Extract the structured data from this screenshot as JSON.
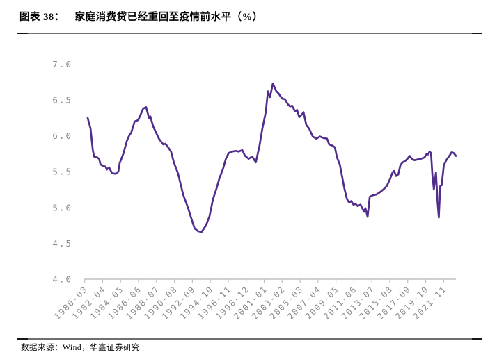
{
  "header": {
    "figure_label": "图表 38：",
    "figure_title": "家庭消费贷已经重回至疫情前水平（%）"
  },
  "footer": {
    "source_text": "数据来源：Wind，华鑫证券研究"
  },
  "colors": {
    "line": "#512E8C",
    "axis": "#C2C2C2",
    "tick_label": "#8A8A8A",
    "title_text": "#000000",
    "divider": "#6F6F6F"
  },
  "chart_data": {
    "type": "line",
    "title": "家庭消费贷已经重回至疫情前水平（%）",
    "unit": "%",
    "grid": false,
    "legend": "none",
    "ylim": [
      4.0,
      7.0
    ],
    "yticks": [
      7.0,
      6.5,
      6.0,
      5.5,
      5.0,
      4.5,
      4.0
    ],
    "xtick_labels": [
      "1980-03",
      "1982-04",
      "1984-05",
      "1986-06",
      "1988-07",
      "1990-08",
      "1992-09",
      "1994-10",
      "1996-11",
      "1998-12",
      "2001-01",
      "2003-02",
      "2005-03",
      "2007-04",
      "2009-05",
      "2011-06",
      "2013-07",
      "2015-08",
      "2017-09",
      "2019-10",
      "2021-11"
    ],
    "series": [
      {
        "points": [
          [
            "1980-03",
            6.25
          ],
          [
            "1980-07",
            6.1
          ],
          [
            "1980-10",
            5.81
          ],
          [
            "1980-12",
            5.71
          ],
          [
            "1981-04",
            5.7
          ],
          [
            "1981-07",
            5.68
          ],
          [
            "1981-09",
            5.6
          ],
          [
            "1982-01",
            5.58
          ],
          [
            "1982-04",
            5.57
          ],
          [
            "1982-06",
            5.53
          ],
          [
            "1982-09",
            5.56
          ],
          [
            "1983-01",
            5.48
          ],
          [
            "1983-06",
            5.47
          ],
          [
            "1983-10",
            5.5
          ],
          [
            "1983-12",
            5.62
          ],
          [
            "1984-05",
            5.75
          ],
          [
            "1984-10",
            5.93
          ],
          [
            "1985-02",
            6.02
          ],
          [
            "1985-04",
            6.04
          ],
          [
            "1985-09",
            6.2
          ],
          [
            "1986-02",
            6.22
          ],
          [
            "1986-09",
            6.38
          ],
          [
            "1987-01",
            6.4
          ],
          [
            "1987-05",
            6.25
          ],
          [
            "1987-07",
            6.27
          ],
          [
            "1987-11",
            6.13
          ],
          [
            "1988-07",
            5.96
          ],
          [
            "1989-01",
            5.88
          ],
          [
            "1989-04",
            5.89
          ],
          [
            "1989-08",
            5.84
          ],
          [
            "1989-12",
            5.78
          ],
          [
            "1990-04",
            5.63
          ],
          [
            "1990-10",
            5.47
          ],
          [
            "1991-05",
            5.18
          ],
          [
            "1991-12",
            4.99
          ],
          [
            "1992-05",
            4.83
          ],
          [
            "1992-09",
            4.71
          ],
          [
            "1993-02",
            4.67
          ],
          [
            "1993-07",
            4.66
          ],
          [
            "1994-01",
            4.75
          ],
          [
            "1994-06",
            4.88
          ],
          [
            "1994-11",
            5.12
          ],
          [
            "1995-04",
            5.27
          ],
          [
            "1995-08",
            5.41
          ],
          [
            "1996-01",
            5.54
          ],
          [
            "1996-05",
            5.68
          ],
          [
            "1996-09",
            5.76
          ],
          [
            "1997-02",
            5.78
          ],
          [
            "1997-07",
            5.79
          ],
          [
            "1997-11",
            5.78
          ],
          [
            "1998-04",
            5.8
          ],
          [
            "1998-08",
            5.72
          ],
          [
            "1999-01",
            5.68
          ],
          [
            "1999-06",
            5.71
          ],
          [
            "1999-11",
            5.63
          ],
          [
            "2000-04",
            5.85
          ],
          [
            "2000-08",
            6.09
          ],
          [
            "2001-01",
            6.33
          ],
          [
            "2001-04",
            6.62
          ],
          [
            "2001-07",
            6.54
          ],
          [
            "2001-11",
            6.73
          ],
          [
            "2002-04",
            6.62
          ],
          [
            "2002-07",
            6.59
          ],
          [
            "2002-12",
            6.52
          ],
          [
            "2003-04",
            6.51
          ],
          [
            "2003-08",
            6.44
          ],
          [
            "2003-11",
            6.41
          ],
          [
            "2004-02",
            6.42
          ],
          [
            "2004-06",
            6.34
          ],
          [
            "2004-09",
            6.36
          ],
          [
            "2004-12",
            6.26
          ],
          [
            "2005-04",
            6.3
          ],
          [
            "2005-06",
            6.33
          ],
          [
            "2005-10",
            6.15
          ],
          [
            "2006-02",
            6.1
          ],
          [
            "2006-07",
            5.99
          ],
          [
            "2006-12",
            5.96
          ],
          [
            "2007-05",
            5.99
          ],
          [
            "2007-10",
            5.97
          ],
          [
            "2008-03",
            5.96
          ],
          [
            "2008-06",
            5.88
          ],
          [
            "2008-11",
            5.86
          ],
          [
            "2009-02",
            5.84
          ],
          [
            "2009-05",
            5.7
          ],
          [
            "2009-09",
            5.6
          ],
          [
            "2009-12",
            5.44
          ],
          [
            "2010-03",
            5.28
          ],
          [
            "2010-07",
            5.12
          ],
          [
            "2010-10",
            5.07
          ],
          [
            "2011-01",
            5.09
          ],
          [
            "2011-04",
            5.04
          ],
          [
            "2011-07",
            5.05
          ],
          [
            "2011-10",
            5.02
          ],
          [
            "2012-02",
            5.04
          ],
          [
            "2012-07",
            4.94
          ],
          [
            "2012-09",
            4.99
          ],
          [
            "2012-12",
            4.87
          ],
          [
            "2013-03",
            5.15
          ],
          [
            "2013-07",
            5.17
          ],
          [
            "2013-12",
            5.18
          ],
          [
            "2014-05",
            5.21
          ],
          [
            "2014-10",
            5.25
          ],
          [
            "2015-03",
            5.3
          ],
          [
            "2015-08",
            5.41
          ],
          [
            "2015-11",
            5.49
          ],
          [
            "2016-01",
            5.51
          ],
          [
            "2016-04",
            5.44
          ],
          [
            "2016-07",
            5.46
          ],
          [
            "2016-10",
            5.59
          ],
          [
            "2017-01",
            5.63
          ],
          [
            "2017-05",
            5.65
          ],
          [
            "2017-08",
            5.68
          ],
          [
            "2017-11",
            5.72
          ],
          [
            "2018-03",
            5.67
          ],
          [
            "2018-06",
            5.66
          ],
          [
            "2018-10",
            5.67
          ],
          [
            "2019-03",
            5.68
          ],
          [
            "2019-08",
            5.7
          ],
          [
            "2019-11",
            5.75
          ],
          [
            "2020-01",
            5.74
          ],
          [
            "2020-03",
            5.78
          ],
          [
            "2020-05",
            5.76
          ],
          [
            "2020-07",
            5.45
          ],
          [
            "2020-09",
            5.25
          ],
          [
            "2020-12",
            5.49
          ],
          [
            "2021-02",
            5.1
          ],
          [
            "2021-04",
            4.86
          ],
          [
            "2021-06",
            5.3
          ],
          [
            "2021-08",
            5.31
          ],
          [
            "2021-11",
            5.59
          ],
          [
            "2022-03",
            5.67
          ],
          [
            "2022-06",
            5.71
          ],
          [
            "2022-10",
            5.77
          ],
          [
            "2023-01",
            5.76
          ],
          [
            "2023-04",
            5.72
          ]
        ]
      }
    ]
  }
}
